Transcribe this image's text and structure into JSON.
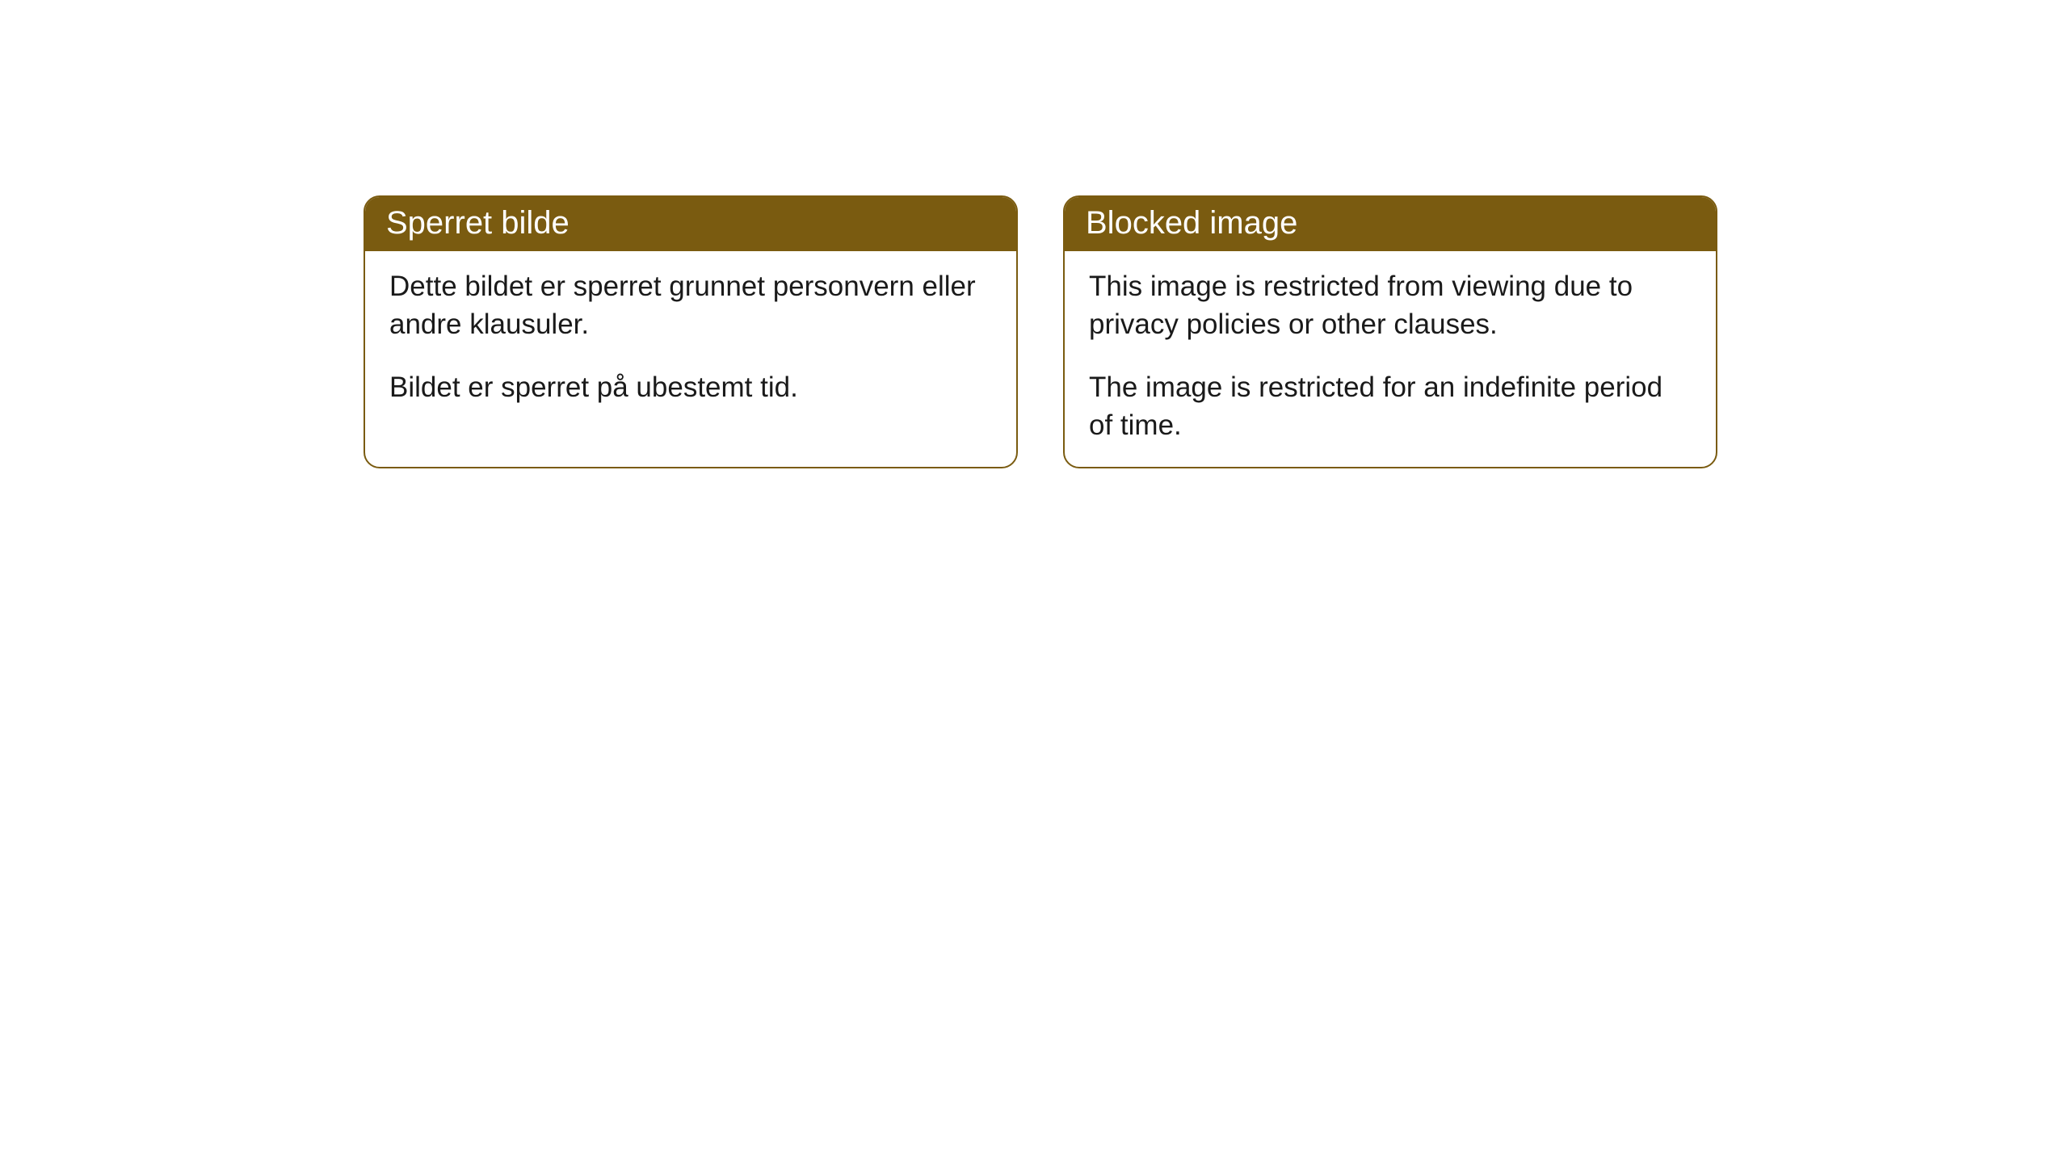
{
  "cards": [
    {
      "title": "Sperret bilde",
      "paragraph1": "Dette bildet er sperret grunnet personvern eller andre klausuler.",
      "paragraph2": "Bildet er sperret på ubestemt tid."
    },
    {
      "title": "Blocked image",
      "paragraph1": "This image is restricted from viewing due to privacy policies or other clauses.",
      "paragraph2": "The image is restricted for an indefinite period of time."
    }
  ],
  "style": {
    "header_background": "#7a5b10",
    "header_text_color": "#ffffff",
    "border_color": "#7a5b10",
    "body_background": "#ffffff",
    "body_text_color": "#1a1a1a",
    "border_radius": 20,
    "header_fontsize": 40,
    "body_fontsize": 35
  }
}
